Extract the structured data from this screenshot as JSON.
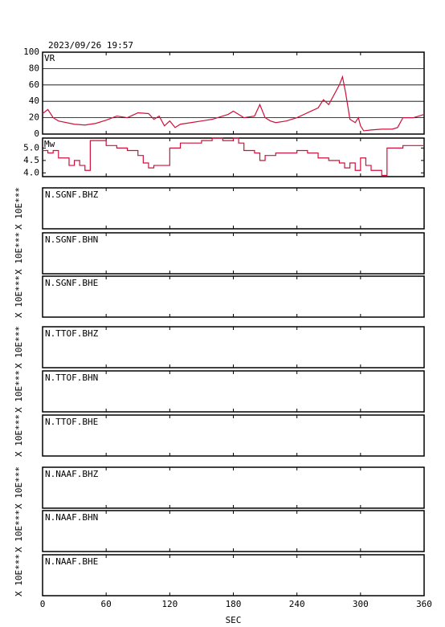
{
  "timestamp": "2023/09/26 19:57",
  "chart_data": [
    {
      "type": "line",
      "title": "VR",
      "color": "#d0103a",
      "grid": true,
      "xlim": [
        0,
        360
      ],
      "ylim": [
        0,
        100
      ],
      "yticks": [
        0,
        20,
        40,
        60,
        80,
        100
      ],
      "x": [
        0,
        5,
        10,
        15,
        30,
        40,
        50,
        60,
        70,
        80,
        90,
        100,
        105,
        110,
        115,
        120,
        125,
        130,
        140,
        150,
        160,
        170,
        175,
        180,
        185,
        190,
        200,
        205,
        210,
        215,
        220,
        230,
        240,
        250,
        260,
        265,
        270,
        275,
        280,
        283,
        286,
        290,
        295,
        298,
        300,
        303,
        310,
        320,
        330,
        335,
        340,
        350,
        355,
        360
      ],
      "values": [
        25,
        30,
        20,
        16,
        12,
        11,
        13,
        17,
        22,
        20,
        26,
        25,
        18,
        22,
        10,
        16,
        8,
        12,
        14,
        16,
        18,
        22,
        24,
        28,
        24,
        20,
        22,
        36,
        20,
        16,
        14,
        16,
        20,
        26,
        32,
        42,
        36,
        48,
        60,
        70,
        50,
        18,
        14,
        20,
        10,
        4,
        5,
        6,
        6,
        8,
        20,
        20,
        22,
        24
      ]
    },
    {
      "type": "step",
      "title": "Mw",
      "color": "#d0103a",
      "grid": false,
      "xlim": [
        0,
        360
      ],
      "ylim": [
        3.85,
        5.4
      ],
      "yticks": [
        {
          "value": 4,
          "label": "4.0"
        },
        4.5,
        {
          "value": 5,
          "label": "5.0"
        }
      ],
      "x": [
        0,
        5,
        10,
        15,
        25,
        30,
        35,
        40,
        45,
        55,
        60,
        70,
        80,
        90,
        95,
        100,
        105,
        115,
        120,
        130,
        140,
        150,
        160,
        170,
        180,
        185,
        190,
        200,
        205,
        210,
        220,
        230,
        240,
        250,
        260,
        270,
        280,
        285,
        290,
        295,
        300,
        305,
        310,
        320,
        325,
        330,
        340,
        360
      ],
      "values": [
        4.9,
        4.8,
        4.9,
        4.6,
        4.3,
        4.5,
        4.3,
        4.1,
        5.3,
        5.3,
        5.1,
        5.0,
        4.9,
        4.7,
        4.4,
        4.2,
        4.3,
        4.3,
        5.0,
        5.2,
        5.2,
        5.3,
        5.4,
        5.3,
        5.4,
        5.2,
        4.9,
        4.8,
        4.5,
        4.7,
        4.8,
        4.8,
        4.9,
        4.8,
        4.6,
        4.5,
        4.4,
        4.2,
        4.4,
        4.1,
        4.6,
        4.3,
        4.1,
        3.9,
        5.0,
        5.0,
        5.1,
        5.1
      ]
    }
  ],
  "x_axis": {
    "xlim": [
      0,
      360
    ],
    "xticks": [
      0,
      60,
      120,
      180,
      240,
      300,
      360
    ],
    "label": "SEC"
  },
  "stations": [
    {
      "name": "N.SGNF.BHZ",
      "scale": "X 10E***"
    },
    {
      "name": "N.SGNF.BHN",
      "scale": "X 10E***"
    },
    {
      "name": "N.SGNF.BHE",
      "scale": "X 10E***"
    },
    {
      "name": "N.TTOF.BHZ",
      "scale": "X 10E***"
    },
    {
      "name": "N.TTOF.BHN",
      "scale": "X 10E***"
    },
    {
      "name": "N.TTOF.BHE",
      "scale": "X 10E***"
    },
    {
      "name": "N.NAAF.BHZ",
      "scale": "X 10E***"
    },
    {
      "name": "N.NAAF.BHN",
      "scale": "X 10E***"
    },
    {
      "name": "N.NAAF.BHE",
      "scale": "X 10E***"
    }
  ]
}
